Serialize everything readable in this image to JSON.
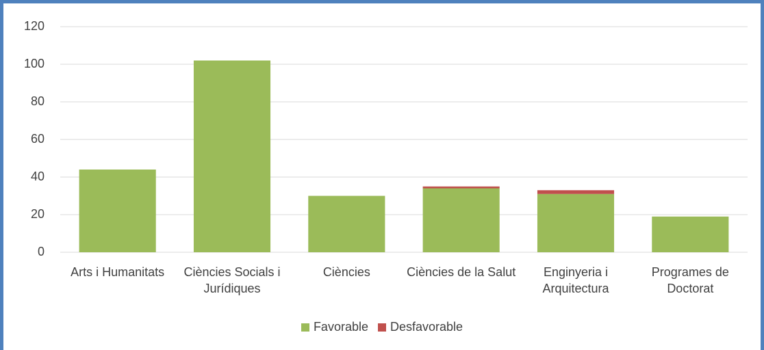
{
  "chart_data": {
    "type": "stacked_bar",
    "categories": [
      "Arts i Humanitats",
      "Ciències Socials i Jurídiques",
      "Ciències",
      "Ciències de la Salut",
      "Enginyeria i Arquitectura",
      "Programes de Doctorat"
    ],
    "series": [
      {
        "name": "Favorable",
        "color": "#9bbb59",
        "values": [
          44,
          102,
          30,
          34,
          31,
          19
        ]
      },
      {
        "name": "Desfavorable",
        "color": "#c0504d",
        "values": [
          0,
          0,
          0,
          1,
          2,
          0
        ]
      }
    ],
    "ylim": [
      0,
      120
    ],
    "yticks": [
      0,
      20,
      40,
      60,
      80,
      100,
      120
    ],
    "grid": true,
    "legend": "bottom"
  }
}
